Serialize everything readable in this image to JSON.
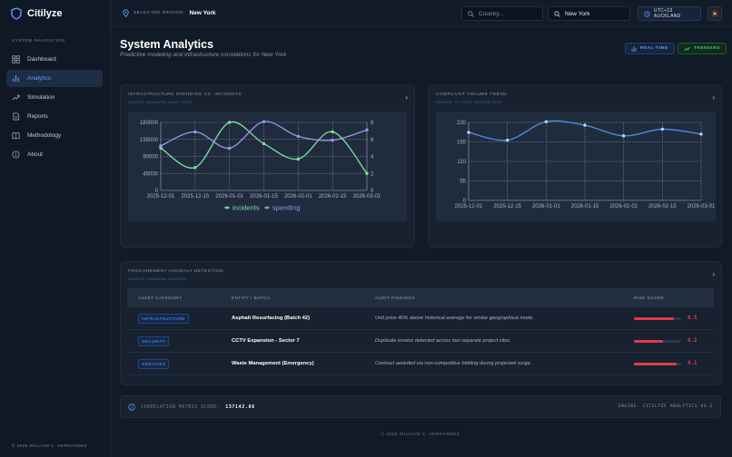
{
  "app": {
    "name": "Citilyze"
  },
  "sidebar": {
    "heading": "SYSTEM NAVIGATION",
    "items": [
      {
        "label": "Dashboard",
        "icon": "grid-icon",
        "active": false
      },
      {
        "label": "Analytics",
        "icon": "bar-chart-icon",
        "active": true
      },
      {
        "label": "Simulation",
        "icon": "trend-icon",
        "active": false
      },
      {
        "label": "Reports",
        "icon": "document-icon",
        "active": false
      },
      {
        "label": "Methodology",
        "icon": "book-icon",
        "active": false
      },
      {
        "label": "About",
        "icon": "info-icon",
        "active": false
      }
    ],
    "footer": "© 2026 WILLIAM C. HERNANDEZ"
  },
  "topbar": {
    "region_label": "SELECTED REGION:",
    "region_value": "New York",
    "country_placeholder": "Country...",
    "city_value": "New York",
    "timezone": "UTC+13 AUCKLAND"
  },
  "page": {
    "title": "System Analytics",
    "subtitle": "Predictive modeling and infrastructure correlations for New York",
    "badge_realtime": "REAL-TIME",
    "badge_trending": "TRENDING"
  },
  "colors": {
    "accent": "#5f9bff",
    "trending": "#36d07a",
    "risk": "#e33b48",
    "incidents": "#7ee0a0",
    "spending": "#9b95ee"
  },
  "chart_data": [
    {
      "type": "line",
      "title": "INFRASTRUCTURE SPENDING VS. INCIDENTS",
      "subtitle": "SOURCE: MUNICIPAL AUDIT FEED",
      "x": [
        "2025-12-01",
        "2025-12-15",
        "2026-01-01",
        "2026-01-15",
        "2026-02-01",
        "2026-02-15",
        "2026-03-01"
      ],
      "ylim_left": [
        0,
        180000
      ],
      "yticks_left": [
        0,
        45000,
        90000,
        135000,
        180000
      ],
      "ylim_right": [
        0,
        8
      ],
      "yticks_right": [
        0,
        2,
        4,
        6,
        8
      ],
      "series": [
        {
          "name": "incidents",
          "axis": "right",
          "color": "#7ee0a0",
          "values": [
            5,
            2.7,
            8,
            5.5,
            3.7,
            6.9,
            2
          ]
        },
        {
          "name": "spending",
          "axis": "left",
          "color": "#9b95ee",
          "values": [
            118000,
            155000,
            112000,
            182000,
            143000,
            133000,
            160000
          ]
        }
      ],
      "legend": "bottom",
      "grid": true
    },
    {
      "type": "line",
      "title": "COMPLAINT VOLUME TREND",
      "subtitle": "SOURCE: 311 CIVIC SERVICE DATA",
      "x": [
        "2025-12-01",
        "2025-12-15",
        "2026-01-01",
        "2026-01-15",
        "2026-02-01",
        "2026-02-15",
        "2026-03-01"
      ],
      "ylim": [
        0,
        220
      ],
      "yticks": [
        0,
        55,
        110,
        165,
        220
      ],
      "series": [
        {
          "color": "#4d8ef0",
          "values": [
            192,
            170,
            222,
            212,
            182,
            201,
            187
          ]
        }
      ],
      "grid": true
    }
  ],
  "anomalies": {
    "title": "PROCUREMENT ANOMALY DETECTION",
    "subtitle": "SOURCE: FINANCIAL LEDGERS",
    "columns": [
      "ASSET CATEGORY",
      "ENTITY / BATCH",
      "AUDIT FINDINGS",
      "RISK SCORE"
    ],
    "rows": [
      {
        "category": "INFRASTRUCTURE",
        "entity": "Asphalt Resurfacing (Batch 42)",
        "finding": "Unit price 40% above historical average for similar geographical mode.",
        "risk": "8.5",
        "risk_fraction": 0.85
      },
      {
        "category": "SECURITY",
        "entity": "CCTV Expansion - Sector 7",
        "finding": "Duplicate invoice detected across two separate project silos.",
        "risk": "6.2",
        "risk_fraction": 0.62
      },
      {
        "category": "SERVICES",
        "entity": "Waste Management (Emergency)",
        "finding": "Contract awarded via non-competitive bidding during projected surge.",
        "risk": "9.1",
        "risk_fraction": 0.91
      }
    ]
  },
  "status": {
    "label": "CORRELATION MATRIX SCORE:",
    "value": "137142.86",
    "engine": "ENGINE: CITILYZE ANALYTICS V4.2"
  },
  "footer": "© 2026 WILLIAM C. HERNANDEZ"
}
